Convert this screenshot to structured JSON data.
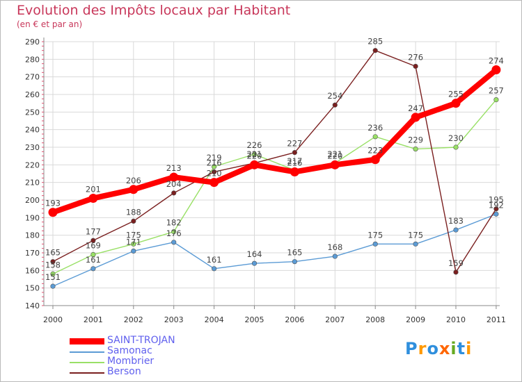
{
  "title": "Evolution des Impôts locaux par Habitant",
  "subtitle": "(en € et par an)",
  "colors": {
    "title": "#c8375a",
    "legend_text": "#6060ee",
    "grid": "#d9d9d9",
    "axis": "#888888"
  },
  "chart_data": {
    "type": "line",
    "title": "Evolution des Impôts locaux par Habitant",
    "subtitle": "(en € et par an)",
    "xlabel": "",
    "ylabel": "",
    "x": [
      "2000",
      "2001",
      "2002",
      "2003",
      "2004",
      "2005",
      "2006",
      "2007",
      "2008",
      "2009",
      "2010",
      "2011"
    ],
    "ylim": [
      140,
      290
    ],
    "yticks": [
      140,
      150,
      160,
      170,
      180,
      190,
      200,
      210,
      220,
      230,
      240,
      250,
      260,
      270,
      280,
      290
    ],
    "grid": true,
    "legend_position": "bottom-left",
    "series": [
      {
        "name": "SAINT-TROJAN",
        "color": "#ff0000",
        "width": "thick",
        "values": [
          193,
          201,
          206,
          213,
          210,
          220,
          216,
          220,
          223,
          247,
          255,
          274
        ]
      },
      {
        "name": "Samonac",
        "color": "#5b9bd5",
        "width": "thin",
        "values": [
          151,
          161,
          171,
          176,
          161,
          164,
          165,
          168,
          175,
          175,
          183,
          192
        ]
      },
      {
        "name": "Mombrier",
        "color": "#99e066",
        "width": "thin",
        "values": [
          158,
          169,
          175,
          182,
          219,
          226,
          217,
          221,
          236,
          229,
          230,
          257
        ]
      },
      {
        "name": "Berson",
        "color": "#7a1f1f",
        "width": "thin",
        "values": [
          165,
          177,
          188,
          204,
          216,
          221,
          227,
          254,
          285,
          276,
          159,
          195
        ]
      }
    ]
  },
  "logo": {
    "letters": [
      "P",
      "r",
      "o",
      "x",
      "i",
      "t",
      "i"
    ],
    "colors": [
      "#2f8fdd",
      "#ff9900",
      "#2f8fdd",
      "#ff6600",
      "#66aa22",
      "#2f8fdd",
      "#ff9900"
    ]
  }
}
